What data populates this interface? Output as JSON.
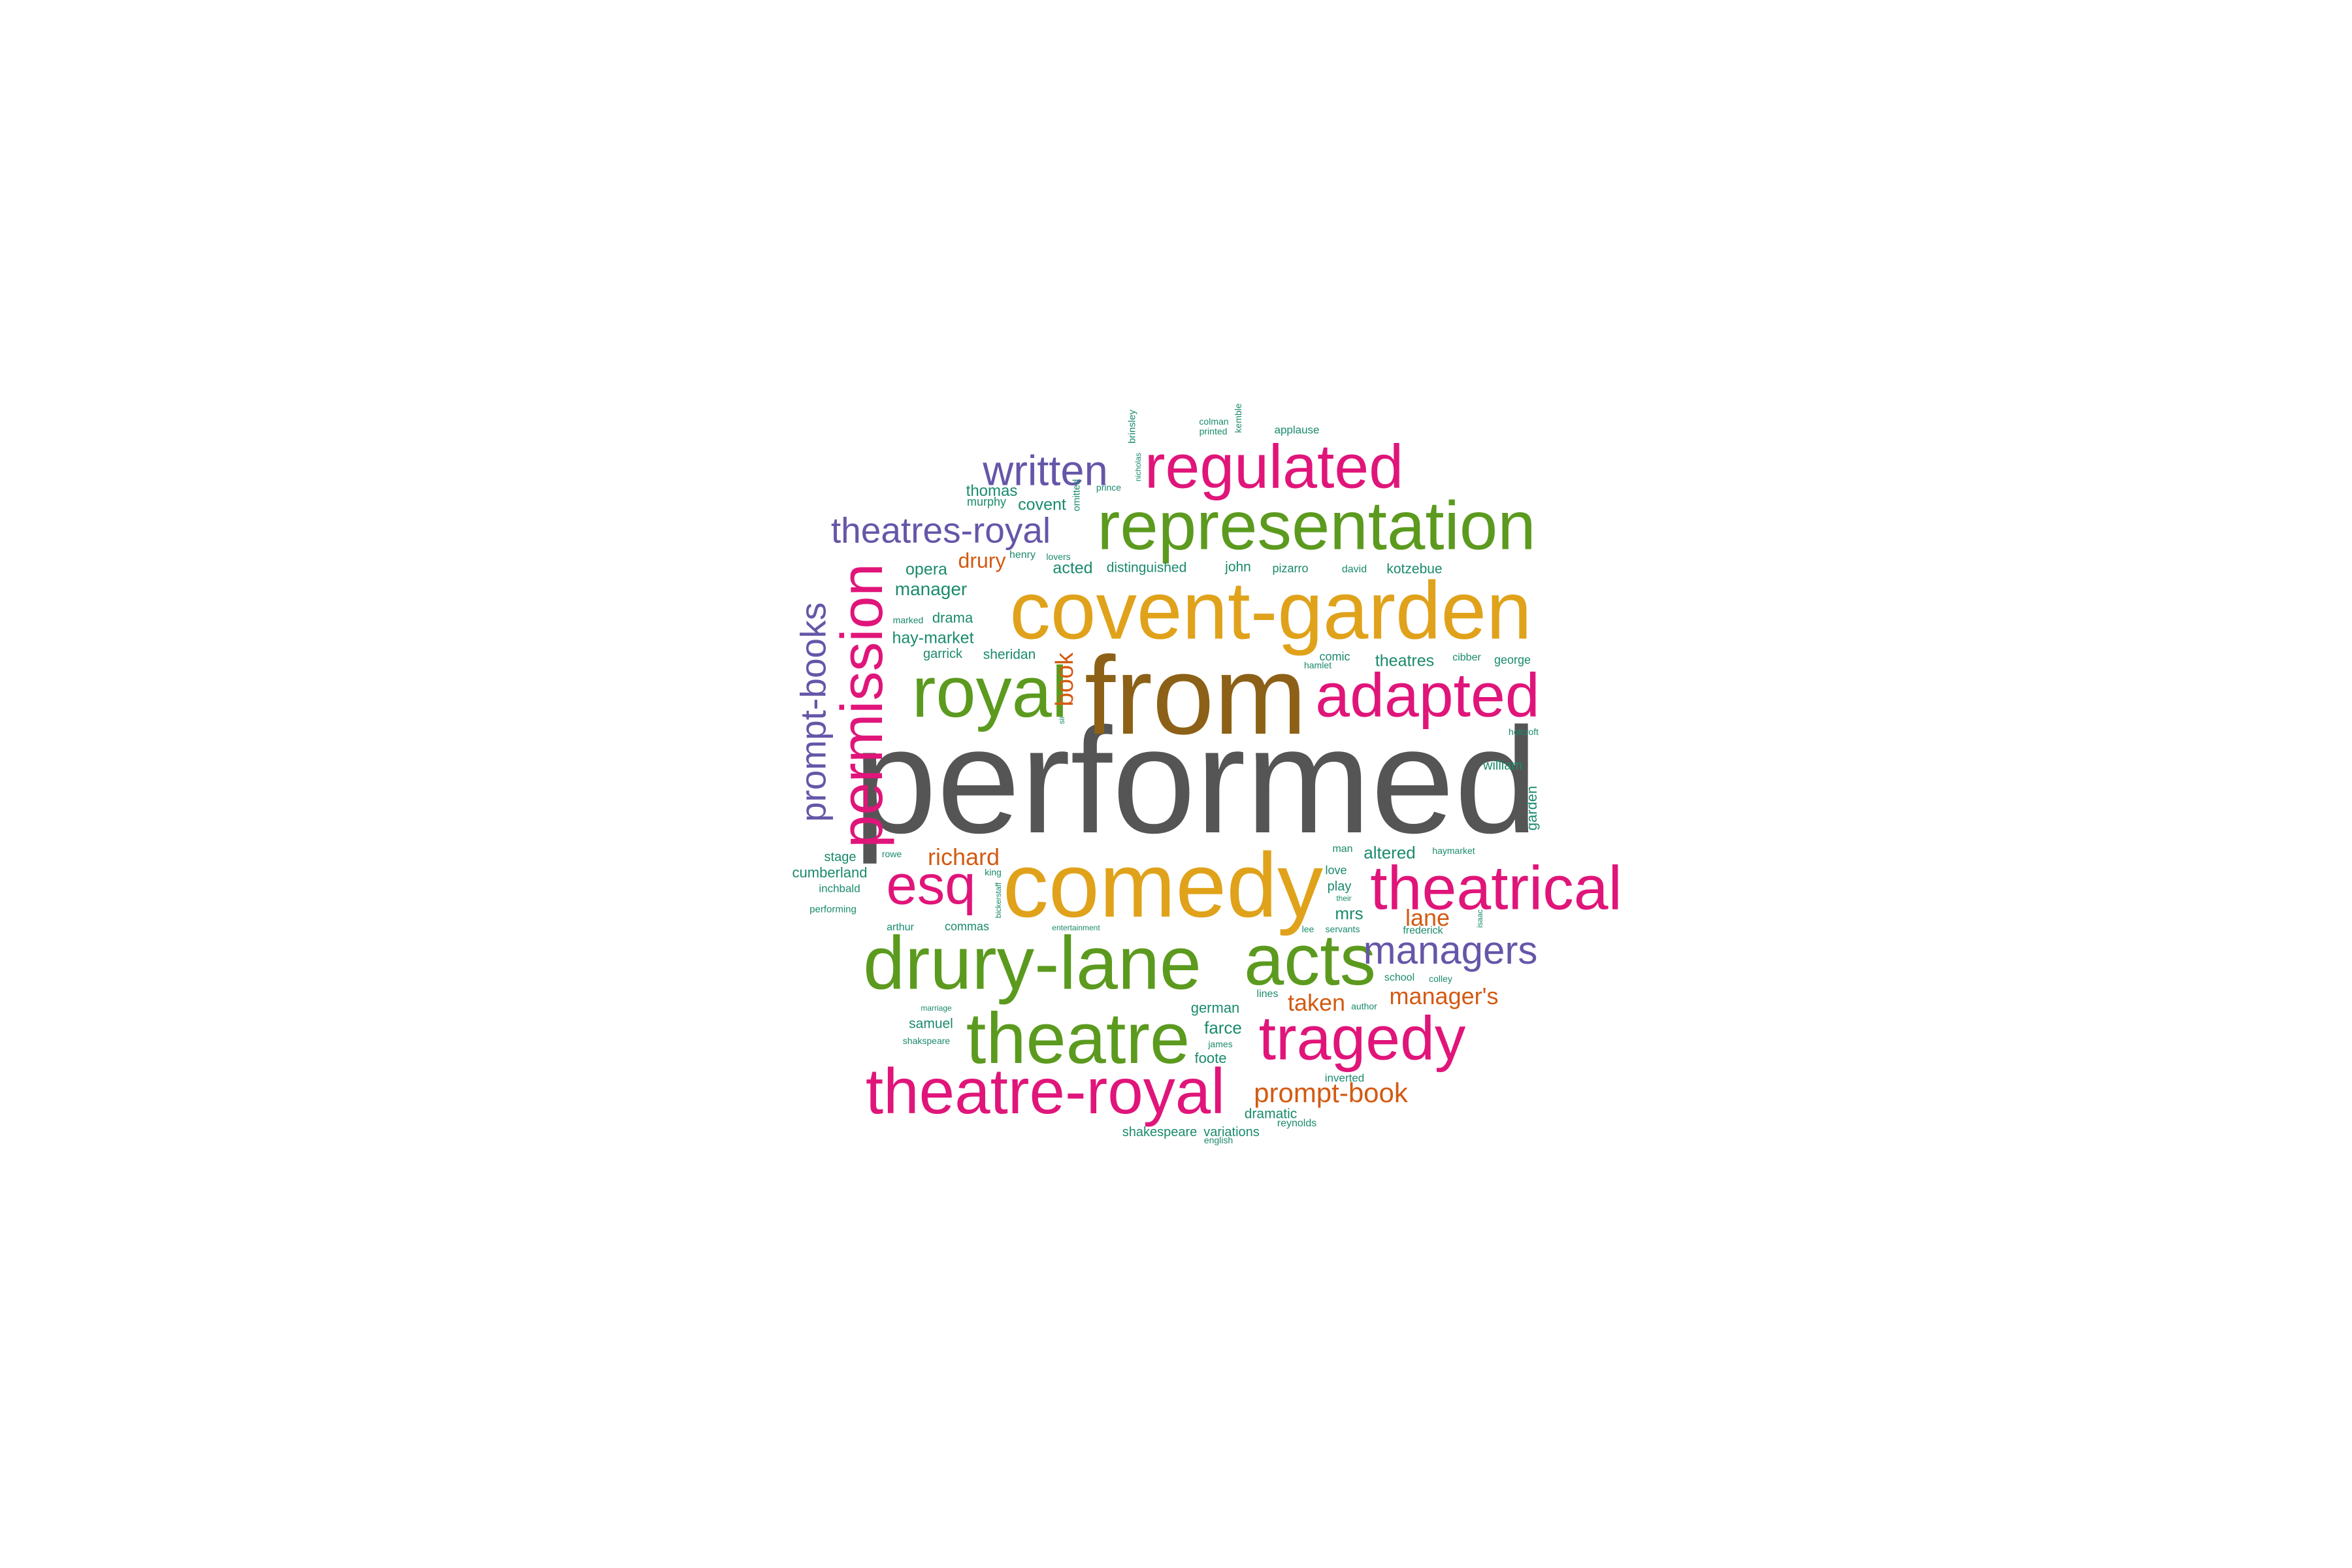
{
  "colors": {
    "background": "#ffffff",
    "gray": "#555555",
    "brown": "#8c6117",
    "gold": "#e0a21b",
    "green": "#5b9a1e",
    "magenta": "#e0157a",
    "purple": "#6656a8",
    "orange": "#d35a12",
    "teal": "#1a8a6c"
  },
  "words": [
    {
      "text": "performed",
      "color": "#555555"
    },
    {
      "text": "from",
      "color": "#8c6117"
    },
    {
      "text": "comedy",
      "color": "#e0a21b"
    },
    {
      "text": "covent-garden",
      "color": "#e0a21b"
    },
    {
      "text": "drury-lane",
      "color": "#5b9a1e"
    },
    {
      "text": "representation",
      "color": "#5b9a1e"
    },
    {
      "text": "acts",
      "color": "#5b9a1e"
    },
    {
      "text": "theatre",
      "color": "#5b9a1e"
    },
    {
      "text": "royal",
      "color": "#5b9a1e"
    },
    {
      "text": "theatrical",
      "color": "#e0157a"
    },
    {
      "text": "adapted",
      "color": "#e0157a"
    },
    {
      "text": "tragedy",
      "color": "#e0157a"
    },
    {
      "text": "theatre-royal",
      "color": "#e0157a"
    },
    {
      "text": "regulated",
      "color": "#e0157a"
    },
    {
      "text": "permission",
      "color": "#e0157a"
    },
    {
      "text": "esq",
      "color": "#e0157a"
    },
    {
      "text": "managers",
      "color": "#6656a8"
    },
    {
      "text": "written",
      "color": "#6656a8"
    },
    {
      "text": "theatres-royal",
      "color": "#6656a8"
    },
    {
      "text": "prompt-books",
      "color": "#6656a8"
    },
    {
      "text": "prompt-book",
      "color": "#d35a12"
    },
    {
      "text": "manager's",
      "color": "#d35a12"
    },
    {
      "text": "taken",
      "color": "#d35a12"
    },
    {
      "text": "lane",
      "color": "#d35a12"
    },
    {
      "text": "richard",
      "color": "#d35a12"
    },
    {
      "text": "drury",
      "color": "#d35a12"
    },
    {
      "text": "book",
      "color": "#d35a12"
    },
    {
      "text": "thomas",
      "color": "#1a8a6c"
    },
    {
      "text": "covent",
      "color": "#1a8a6c"
    },
    {
      "text": "murphy",
      "color": "#1a8a6c"
    },
    {
      "text": "opera",
      "color": "#1a8a6c"
    },
    {
      "text": "manager",
      "color": "#1a8a6c"
    },
    {
      "text": "acted",
      "color": "#1a8a6c"
    },
    {
      "text": "distinguished",
      "color": "#1a8a6c"
    },
    {
      "text": "john",
      "color": "#1a8a6c"
    },
    {
      "text": "pizarro",
      "color": "#1a8a6c"
    },
    {
      "text": "david",
      "color": "#1a8a6c"
    },
    {
      "text": "kotzebue",
      "color": "#1a8a6c"
    },
    {
      "text": "henry",
      "color": "#1a8a6c"
    },
    {
      "text": "lovers",
      "color": "#1a8a6c"
    },
    {
      "text": "marked",
      "color": "#1a8a6c"
    },
    {
      "text": "drama",
      "color": "#1a8a6c"
    },
    {
      "text": "hay-market",
      "color": "#1a8a6c"
    },
    {
      "text": "garrick",
      "color": "#1a8a6c"
    },
    {
      "text": "sheridan",
      "color": "#1a8a6c"
    },
    {
      "text": "comic",
      "color": "#1a8a6c"
    },
    {
      "text": "hamlet",
      "color": "#1a8a6c"
    },
    {
      "text": "theatres",
      "color": "#1a8a6c"
    },
    {
      "text": "cibber",
      "color": "#1a8a6c"
    },
    {
      "text": "george",
      "color": "#1a8a6c"
    },
    {
      "text": "holcroft",
      "color": "#1a8a6c"
    },
    {
      "text": "william",
      "color": "#1a8a6c"
    },
    {
      "text": "garden",
      "color": "#1a8a6c"
    },
    {
      "text": "sir",
      "color": "#1a8a6c"
    },
    {
      "text": "stage",
      "color": "#1a8a6c"
    },
    {
      "text": "rowe",
      "color": "#1a8a6c"
    },
    {
      "text": "cumberland",
      "color": "#1a8a6c"
    },
    {
      "text": "inchbald",
      "color": "#1a8a6c"
    },
    {
      "text": "performing",
      "color": "#1a8a6c"
    },
    {
      "text": "king",
      "color": "#1a8a6c"
    },
    {
      "text": "bickerstaff",
      "color": "#1a8a6c"
    },
    {
      "text": "arthur",
      "color": "#1a8a6c"
    },
    {
      "text": "commas",
      "color": "#1a8a6c"
    },
    {
      "text": "entertainment",
      "color": "#1a8a6c"
    },
    {
      "text": "man",
      "color": "#1a8a6c"
    },
    {
      "text": "altered",
      "color": "#1a8a6c"
    },
    {
      "text": "haymarket",
      "color": "#1a8a6c"
    },
    {
      "text": "love",
      "color": "#1a8a6c"
    },
    {
      "text": "play",
      "color": "#1a8a6c"
    },
    {
      "text": "their",
      "color": "#1a8a6c"
    },
    {
      "text": "mrs",
      "color": "#1a8a6c"
    },
    {
      "text": "frederick",
      "color": "#1a8a6c"
    },
    {
      "text": "isaac",
      "color": "#1a8a6c"
    },
    {
      "text": "lee",
      "color": "#1a8a6c"
    },
    {
      "text": "servants",
      "color": "#1a8a6c"
    },
    {
      "text": "school",
      "color": "#1a8a6c"
    },
    {
      "text": "colley",
      "color": "#1a8a6c"
    },
    {
      "text": "lines",
      "color": "#1a8a6c"
    },
    {
      "text": "author",
      "color": "#1a8a6c"
    },
    {
      "text": "german",
      "color": "#1a8a6c"
    },
    {
      "text": "marriage",
      "color": "#1a8a6c"
    },
    {
      "text": "samuel",
      "color": "#1a8a6c"
    },
    {
      "text": "shakspeare",
      "color": "#1a8a6c"
    },
    {
      "text": "farce",
      "color": "#1a8a6c"
    },
    {
      "text": "james",
      "color": "#1a8a6c"
    },
    {
      "text": "foote",
      "color": "#1a8a6c"
    },
    {
      "text": "inverted",
      "color": "#1a8a6c"
    },
    {
      "text": "dramatic",
      "color": "#1a8a6c"
    },
    {
      "text": "reynolds",
      "color": "#1a8a6c"
    },
    {
      "text": "shakespeare",
      "color": "#1a8a6c"
    },
    {
      "text": "variations",
      "color": "#1a8a6c"
    },
    {
      "text": "english",
      "color": "#1a8a6c"
    },
    {
      "text": "brinsley",
      "color": "#1a8a6c"
    },
    {
      "text": "nicholas",
      "color": "#1a8a6c"
    },
    {
      "text": "prince",
      "color": "#1a8a6c"
    },
    {
      "text": "omitted",
      "color": "#1a8a6c"
    },
    {
      "text": "colman",
      "color": "#1a8a6c"
    },
    {
      "text": "printed",
      "color": "#1a8a6c"
    },
    {
      "text": "kemble",
      "color": "#1a8a6c"
    },
    {
      "text": "applause",
      "color": "#1a8a6c"
    }
  ]
}
